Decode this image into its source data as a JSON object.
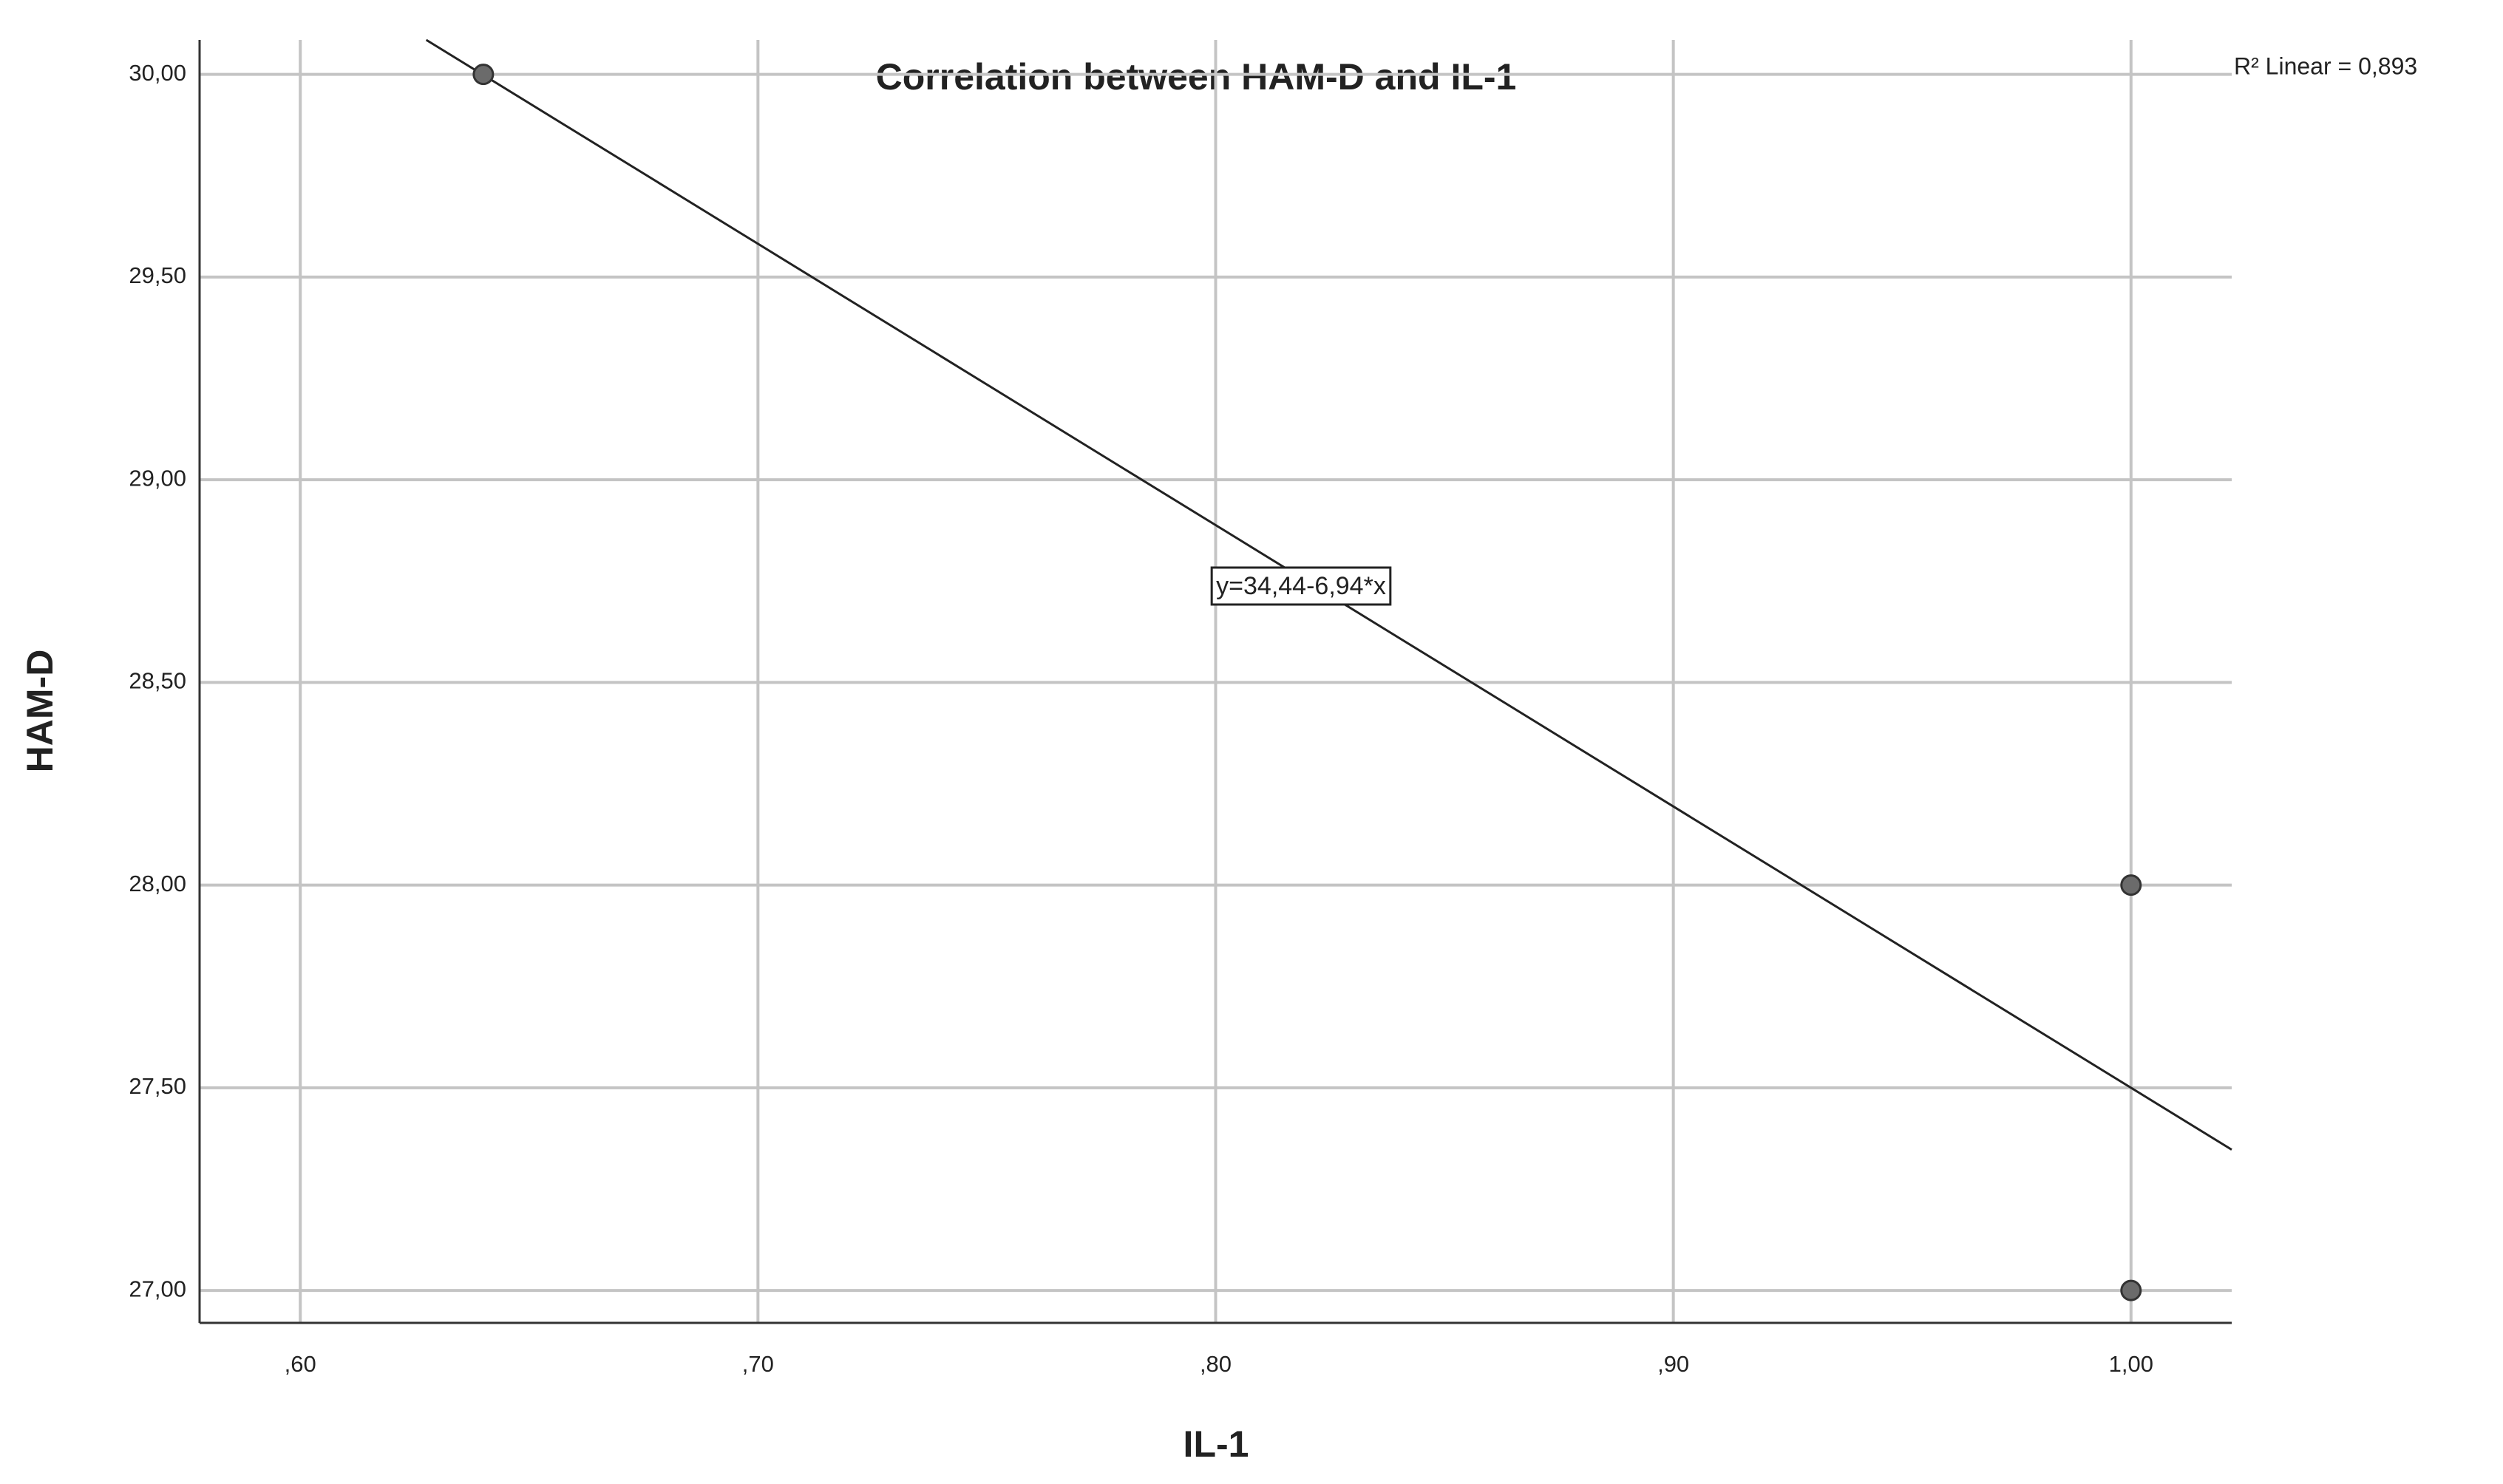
{
  "chart_data": {
    "type": "scatter",
    "title": "Correlation between HAM-D and IL-1",
    "x_label": "IL-1",
    "y_label": "HAM-D",
    "x": [
      0.64,
      1.0,
      1.0
    ],
    "values": [
      30,
      28,
      27
    ],
    "color": "#6b6b6b",
    "xlim": [
      0.578,
      1.022
    ],
    "ylim": [
      26.92,
      30.085
    ],
    "xticks": [
      {
        "value": 0.6,
        "label": ",60"
      },
      {
        "value": 0.7,
        "label": ",70"
      },
      {
        "value": 0.8,
        "label": ",80"
      },
      {
        "value": 0.9,
        "label": ",90"
      },
      {
        "value": 1.0,
        "label": "1,00"
      }
    ],
    "yticks": [
      {
        "value": 27,
        "label": "27,00"
      },
      {
        "value": 27.5,
        "label": "27,50"
      },
      {
        "value": 28,
        "label": "28,00"
      },
      {
        "value": 28.5,
        "label": "28,50"
      },
      {
        "value": 29,
        "label": "29,00"
      },
      {
        "value": 29.5,
        "label": "29,50"
      },
      {
        "value": 30,
        "label": "30,00"
      }
    ],
    "grid": true,
    "fit": {
      "intercept": 34.44,
      "slope": -6.94,
      "label": "y=34,44-6,94*x"
    },
    "r2_label": "R² Linear = 0,893"
  }
}
